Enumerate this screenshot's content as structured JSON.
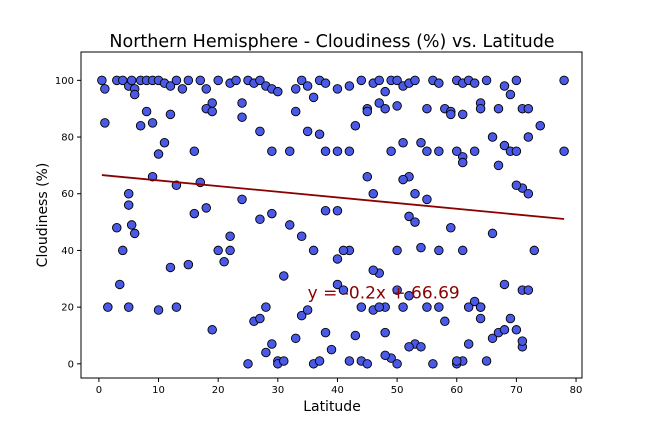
{
  "chart_data": {
    "type": "scatter",
    "title": "Northern Hemisphere - Cloudiness (%) vs. Latitude",
    "xlabel": "Latitude",
    "ylabel": "Cloudiness (%)",
    "xlim": [
      -3,
      81
    ],
    "ylim": [
      -5,
      110
    ],
    "xticks": [
      0,
      10,
      20,
      30,
      40,
      50,
      60,
      70,
      80
    ],
    "yticks": [
      0,
      20,
      40,
      60,
      80,
      100
    ],
    "grid": false,
    "marker_color": "#4b5ae6",
    "marker_edge": "#000000",
    "line_color": "#8b0000",
    "regression": {
      "slope": -0.2,
      "intercept": 66.69,
      "x_range": [
        0.5,
        78
      ]
    },
    "annotation": {
      "text": "y = -0.2x + 66.69",
      "x": 35,
      "y": 23,
      "color": "#8b0000"
    },
    "points": [
      [
        0.5,
        100
      ],
      [
        1,
        97
      ],
      [
        3,
        100
      ],
      [
        4,
        100
      ],
      [
        5,
        98
      ],
      [
        5.5,
        100
      ],
      [
        6,
        97
      ],
      [
        7,
        100
      ],
      [
        8,
        100
      ],
      [
        9,
        100
      ],
      [
        10,
        100
      ],
      [
        11,
        99
      ],
      [
        12,
        98
      ],
      [
        13,
        100
      ],
      [
        14,
        97
      ],
      [
        15,
        100
      ],
      [
        17,
        100
      ],
      [
        18,
        97
      ],
      [
        19,
        92
      ],
      [
        20,
        100
      ],
      [
        22,
        99
      ],
      [
        23,
        100
      ],
      [
        24,
        92
      ],
      [
        25,
        100
      ],
      [
        26,
        99
      ],
      [
        27,
        100
      ],
      [
        28,
        98
      ],
      [
        29,
        97
      ],
      [
        30,
        96
      ],
      [
        33,
        97
      ],
      [
        34,
        100
      ],
      [
        35,
        98
      ],
      [
        37,
        100
      ],
      [
        38,
        99
      ],
      [
        40,
        97
      ],
      [
        42,
        98
      ],
      [
        44,
        100
      ],
      [
        45,
        90
      ],
      [
        46,
        99
      ],
      [
        47,
        100
      ],
      [
        48,
        96
      ],
      [
        49,
        100
      ],
      [
        50,
        100
      ],
      [
        51,
        98
      ],
      [
        52,
        99
      ],
      [
        53,
        100
      ],
      [
        55,
        90
      ],
      [
        56,
        100
      ],
      [
        57,
        99
      ],
      [
        58,
        90
      ],
      [
        59,
        89
      ],
      [
        60,
        100
      ],
      [
        61,
        99
      ],
      [
        62,
        100
      ],
      [
        63,
        99
      ],
      [
        64,
        92
      ],
      [
        65,
        100
      ],
      [
        67,
        90
      ],
      [
        68,
        98
      ],
      [
        69,
        95
      ],
      [
        70,
        100
      ],
      [
        71,
        90
      ],
      [
        72,
        90
      ],
      [
        1,
        85
      ],
      [
        6,
        95
      ],
      [
        7,
        84
      ],
      [
        8,
        89
      ],
      [
        9,
        85
      ],
      [
        10,
        74
      ],
      [
        11,
        78
      ],
      [
        12,
        88
      ],
      [
        16,
        75
      ],
      [
        18,
        90
      ],
      [
        19,
        89
      ],
      [
        24,
        87
      ],
      [
        27,
        82
      ],
      [
        29,
        75
      ],
      [
        32,
        75
      ],
      [
        33,
        89
      ],
      [
        35,
        82
      ],
      [
        36,
        94
      ],
      [
        37,
        81
      ],
      [
        38,
        75
      ],
      [
        40,
        75
      ],
      [
        42,
        75
      ],
      [
        43,
        84
      ],
      [
        45,
        89
      ],
      [
        47,
        92
      ],
      [
        48,
        90
      ],
      [
        49,
        75
      ],
      [
        50,
        91
      ],
      [
        51,
        78
      ],
      [
        52,
        66
      ],
      [
        53,
        60
      ],
      [
        54,
        78
      ],
      [
        55,
        75
      ],
      [
        57,
        75
      ],
      [
        59,
        88
      ],
      [
        61,
        73
      ],
      [
        63,
        75
      ],
      [
        64,
        90
      ],
      [
        66,
        80
      ],
      [
        68,
        77
      ],
      [
        69,
        75
      ],
      [
        70,
        75
      ],
      [
        71,
        62
      ],
      [
        72,
        80
      ],
      [
        74,
        84
      ],
      [
        78,
        100
      ],
      [
        78,
        75
      ],
      [
        60,
        75
      ],
      [
        61,
        71
      ],
      [
        61,
        88
      ],
      [
        9,
        66
      ],
      [
        13,
        63
      ],
      [
        17,
        64
      ],
      [
        20,
        40
      ],
      [
        22,
        40
      ],
      [
        24,
        58
      ],
      [
        27,
        51
      ],
      [
        29,
        53
      ],
      [
        32,
        49
      ],
      [
        34,
        45
      ],
      [
        36,
        40
      ],
      [
        38,
        54
      ],
      [
        40,
        54
      ],
      [
        42,
        40
      ],
      [
        44,
        20
      ],
      [
        46,
        60
      ],
      [
        48,
        20
      ],
      [
        50,
        40
      ],
      [
        51,
        65
      ],
      [
        52,
        52
      ],
      [
        53,
        50
      ],
      [
        54,
        41
      ],
      [
        55,
        58
      ],
      [
        57,
        40
      ],
      [
        59,
        48
      ],
      [
        61,
        40
      ],
      [
        62,
        20
      ],
      [
        64,
        20
      ],
      [
        66,
        46
      ],
      [
        67,
        70
      ],
      [
        68,
        28
      ],
      [
        70,
        63
      ],
      [
        71,
        26
      ],
      [
        72,
        60
      ],
      [
        73,
        40
      ],
      [
        45,
        66
      ],
      [
        3,
        48
      ],
      [
        4,
        40
      ],
      [
        5,
        60
      ],
      [
        5,
        56
      ],
      [
        5.5,
        49
      ],
      [
        6,
        46
      ],
      [
        3.5,
        28
      ],
      [
        1.5,
        20
      ],
      [
        5,
        20
      ],
      [
        10,
        19
      ],
      [
        12,
        34
      ],
      [
        13,
        20
      ],
      [
        15,
        35
      ],
      [
        16,
        53
      ],
      [
        18,
        55
      ],
      [
        19,
        12
      ],
      [
        21,
        36
      ],
      [
        22,
        45
      ],
      [
        25,
        0
      ],
      [
        26,
        15
      ],
      [
        27,
        16
      ],
      [
        28,
        20
      ],
      [
        28,
        4
      ],
      [
        29,
        7
      ],
      [
        30,
        1
      ],
      [
        31,
        31
      ],
      [
        33,
        9
      ],
      [
        34,
        17
      ],
      [
        35,
        19
      ],
      [
        36,
        0
      ],
      [
        37,
        1
      ],
      [
        38,
        11
      ],
      [
        39,
        5
      ],
      [
        40,
        28
      ],
      [
        41,
        26
      ],
      [
        42,
        1
      ],
      [
        43,
        10
      ],
      [
        44,
        1
      ],
      [
        45,
        0
      ],
      [
        46,
        19
      ],
      [
        47,
        32
      ],
      [
        48,
        11
      ],
      [
        49,
        2
      ],
      [
        50,
        0
      ],
      [
        51,
        20
      ],
      [
        52,
        24
      ],
      [
        53,
        7
      ],
      [
        54,
        6
      ],
      [
        55,
        20
      ],
      [
        56,
        0
      ],
      [
        58,
        15
      ],
      [
        60,
        0
      ],
      [
        61,
        1
      ],
      [
        62,
        7
      ],
      [
        63,
        22
      ],
      [
        64,
        16
      ],
      [
        65,
        1
      ],
      [
        66,
        9
      ],
      [
        67,
        11
      ],
      [
        68,
        12
      ],
      [
        69,
        16
      ],
      [
        70,
        12
      ],
      [
        71,
        6
      ],
      [
        71,
        8
      ],
      [
        72,
        26
      ],
      [
        30,
        0
      ],
      [
        31,
        1
      ],
      [
        40,
        37
      ],
      [
        41,
        40
      ],
      [
        46,
        33
      ],
      [
        47,
        20
      ],
      [
        48,
        3
      ],
      [
        50,
        26
      ],
      [
        52,
        6
      ],
      [
        57,
        20
      ],
      [
        60,
        1
      ],
      [
        64,
        20
      ]
    ]
  }
}
